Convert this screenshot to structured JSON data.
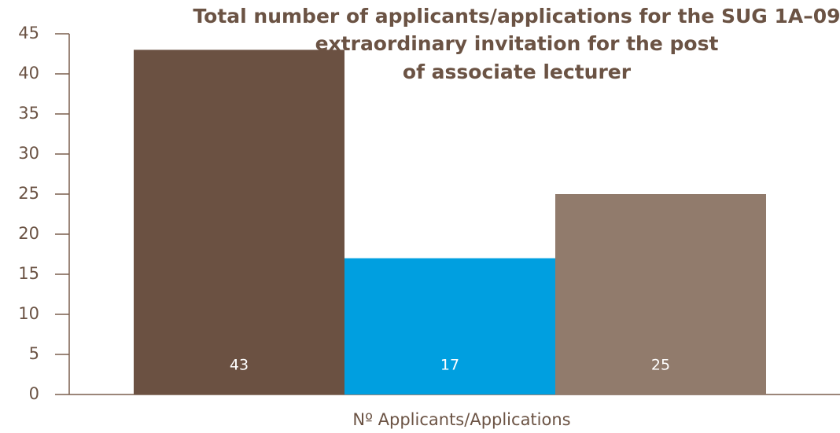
{
  "chart_data": {
    "type": "bar",
    "title": [
      "Total number of applicants/applications for the SUG 1A–09",
      "extraordinary invitation for the post",
      "of associate lecturer"
    ],
    "x_label": "Nº Applicants/Applications",
    "categories": [
      null,
      null,
      null
    ],
    "values": [
      43,
      17,
      25
    ],
    "colors": [
      "#6b5142",
      "#009fe0",
      "#917b6c"
    ],
    "ylim": [
      0,
      45
    ],
    "yticks": [
      0,
      5,
      10,
      15,
      20,
      25,
      30,
      35,
      40,
      45
    ],
    "grid": false
  }
}
